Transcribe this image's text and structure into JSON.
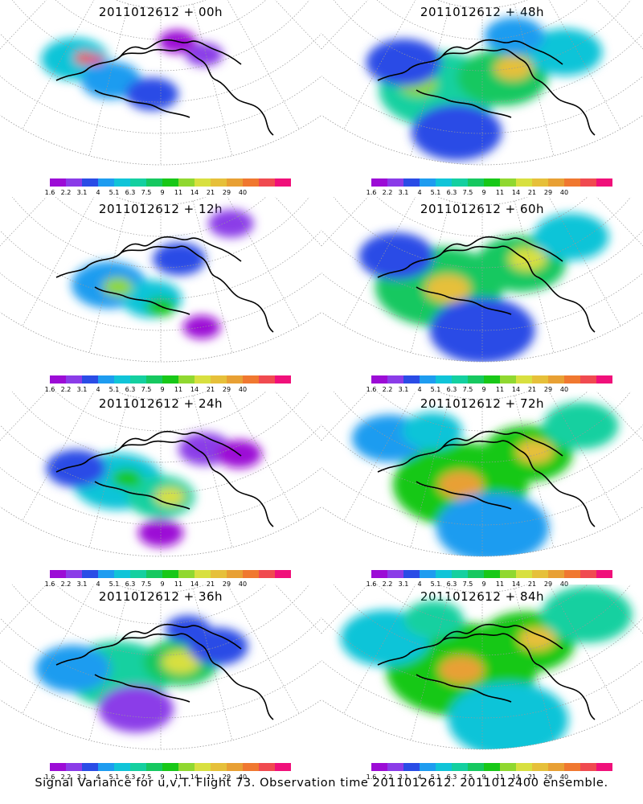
{
  "footer": "Signal Variance for u,v,T. Flight 73. Observation time 2011012612. 2011012400 ensemble.",
  "colors": [
    "#9c0cd6",
    "#8b3ce8",
    "#2a4ce6",
    "#1e9cf0",
    "#10c4d8",
    "#14d0a0",
    "#16c860",
    "#18c818",
    "#90d830",
    "#d8e040",
    "#e6c03a",
    "#e8a034",
    "#f07830",
    "#f04a50",
    "#f0107a"
  ],
  "chart_data": [
    {
      "type": "heatmap",
      "title": "2011012612 + 00h",
      "colorbar_labels": [
        "1.6",
        "2.2",
        "3.1",
        "4",
        "5.1",
        "6.3",
        "7.5",
        "9",
        "11",
        "14",
        "21",
        "29",
        "40"
      ],
      "blobs": [
        {
          "x": 0.28,
          "y": 0.45,
          "level": 4,
          "r": 0.09
        },
        {
          "x": 0.38,
          "y": 0.5,
          "level": 3,
          "r": 0.08
        },
        {
          "x": 0.48,
          "y": 0.55,
          "level": 2,
          "r": 0.07
        },
        {
          "x": 0.62,
          "y": 0.33,
          "level": 1,
          "r": 0.05
        },
        {
          "x": 0.55,
          "y": 0.22,
          "level": 0,
          "r": 0.05
        },
        {
          "x": 0.3,
          "y": 0.42,
          "level": 13,
          "r": 0.025
        },
        {
          "x": 0.33,
          "y": 0.4,
          "level": 14,
          "r": 0.02
        }
      ]
    },
    {
      "type": "heatmap",
      "title": "2011012612 + 12h",
      "colorbar_labels": [
        "1.6",
        "2.2",
        "3.1",
        "4",
        "5.1",
        "6.3",
        "7.5",
        "9",
        "11",
        "14",
        "21",
        "29",
        "40"
      ],
      "blobs": [
        {
          "x": 0.38,
          "y": 0.55,
          "level": 3,
          "r": 0.1
        },
        {
          "x": 0.48,
          "y": 0.6,
          "level": 4,
          "r": 0.08
        },
        {
          "x": 0.4,
          "y": 0.55,
          "level": 8,
          "r": 0.04
        },
        {
          "x": 0.5,
          "y": 0.65,
          "level": 7,
          "r": 0.04
        },
        {
          "x": 0.55,
          "y": 0.35,
          "level": 2,
          "r": 0.07
        },
        {
          "x": 0.72,
          "y": 0.22,
          "level": 1,
          "r": 0.06
        },
        {
          "x": 0.58,
          "y": 0.8,
          "level": 0,
          "r": 0.05
        }
      ]
    },
    {
      "type": "heatmap",
      "title": "2011012612 + 24h",
      "colorbar_labels": [
        "1.6",
        "2.2",
        "3.1",
        "4",
        "5.1",
        "6.3",
        "7.5",
        "9",
        "11",
        "14",
        "21",
        "29",
        "40"
      ],
      "blobs": [
        {
          "x": 0.4,
          "y": 0.55,
          "level": 4,
          "r": 0.12
        },
        {
          "x": 0.5,
          "y": 0.62,
          "level": 5,
          "r": 0.09
        },
        {
          "x": 0.52,
          "y": 0.62,
          "level": 9,
          "r": 0.04
        },
        {
          "x": 0.42,
          "y": 0.52,
          "level": 7,
          "r": 0.04
        },
        {
          "x": 0.3,
          "y": 0.55,
          "level": 2,
          "r": 0.08
        },
        {
          "x": 0.62,
          "y": 0.35,
          "level": 1,
          "r": 0.07
        },
        {
          "x": 0.7,
          "y": 0.45,
          "level": 0,
          "r": 0.06
        },
        {
          "x": 0.5,
          "y": 0.85,
          "level": 0,
          "r": 0.06
        }
      ]
    },
    {
      "type": "heatmap",
      "title": "2011012612 + 36h",
      "colorbar_labels": [
        "1.6",
        "2.2",
        "3.1",
        "4",
        "5.1",
        "6.3",
        "7.5",
        "9",
        "11",
        "14",
        "21",
        "29",
        "40"
      ],
      "blobs": [
        {
          "x": 0.4,
          "y": 0.55,
          "level": 5,
          "r": 0.14
        },
        {
          "x": 0.55,
          "y": 0.45,
          "level": 6,
          "r": 0.1
        },
        {
          "x": 0.55,
          "y": 0.45,
          "level": 9,
          "r": 0.05
        },
        {
          "x": 0.3,
          "y": 0.6,
          "level": 3,
          "r": 0.1
        },
        {
          "x": 0.65,
          "y": 0.4,
          "level": 2,
          "r": 0.08
        },
        {
          "x": 0.45,
          "y": 0.75,
          "level": 1,
          "r": 0.1
        },
        {
          "x": 0.58,
          "y": 0.25,
          "level": 2,
          "r": 0.06
        }
      ]
    },
    {
      "type": "heatmap",
      "title": "2011012612 + 48h",
      "colorbar_labels": [
        "1.6",
        "2.2",
        "3.1",
        "4",
        "5.1",
        "6.3",
        "7.5",
        "9",
        "11",
        "14",
        "21",
        "29",
        "40"
      ],
      "blobs": [
        {
          "x": 0.4,
          "y": 0.55,
          "level": 5,
          "r": 0.16
        },
        {
          "x": 0.55,
          "y": 0.45,
          "level": 6,
          "r": 0.12
        },
        {
          "x": 0.58,
          "y": 0.4,
          "level": 10,
          "r": 0.05
        },
        {
          "x": 0.35,
          "y": 0.55,
          "level": 8,
          "r": 0.05
        },
        {
          "x": 0.72,
          "y": 0.4,
          "level": 4,
          "r": 0.1
        },
        {
          "x": 0.45,
          "y": 0.8,
          "level": 2,
          "r": 0.12
        },
        {
          "x": 0.3,
          "y": 0.45,
          "level": 2,
          "r": 0.1
        },
        {
          "x": 0.6,
          "y": 0.2,
          "level": 3,
          "r": 0.08
        }
      ]
    },
    {
      "type": "heatmap",
      "title": "2011012612 + 60h",
      "colorbar_labels": [
        "1.6",
        "2.2",
        "3.1",
        "4",
        "5.1",
        "6.3",
        "7.5",
        "9",
        "11",
        "14",
        "21",
        "29",
        "40"
      ],
      "blobs": [
        {
          "x": 0.4,
          "y": 0.55,
          "level": 6,
          "r": 0.17
        },
        {
          "x": 0.42,
          "y": 0.55,
          "level": 10,
          "r": 0.06
        },
        {
          "x": 0.6,
          "y": 0.4,
          "level": 6,
          "r": 0.12
        },
        {
          "x": 0.62,
          "y": 0.38,
          "level": 9,
          "r": 0.05
        },
        {
          "x": 0.75,
          "y": 0.35,
          "level": 4,
          "r": 0.1
        },
        {
          "x": 0.5,
          "y": 0.8,
          "level": 2,
          "r": 0.14
        },
        {
          "x": 0.28,
          "y": 0.45,
          "level": 2,
          "r": 0.1
        }
      ]
    },
    {
      "type": "heatmap",
      "title": "2011012612 + 72h",
      "colorbar_labels": [
        "1.6",
        "2.2",
        "3.1",
        "4",
        "5.1",
        "6.3",
        "7.5",
        "9",
        "11",
        "14",
        "21",
        "29",
        "40"
      ],
      "blobs": [
        {
          "x": 0.45,
          "y": 0.55,
          "level": 7,
          "r": 0.18
        },
        {
          "x": 0.45,
          "y": 0.55,
          "level": 11,
          "r": 0.06
        },
        {
          "x": 0.62,
          "y": 0.38,
          "level": 7,
          "r": 0.12
        },
        {
          "x": 0.64,
          "y": 0.38,
          "level": 10,
          "r": 0.05
        },
        {
          "x": 0.78,
          "y": 0.35,
          "level": 5,
          "r": 0.1
        },
        {
          "x": 0.52,
          "y": 0.82,
          "level": 3,
          "r": 0.15
        },
        {
          "x": 0.25,
          "y": 0.4,
          "level": 3,
          "r": 0.1
        },
        {
          "x": 0.35,
          "y": 0.25,
          "level": 4,
          "r": 0.08
        }
      ]
    },
    {
      "type": "heatmap",
      "title": "2011012612 + 84h",
      "colorbar_labels": [
        "1.6",
        "2.2",
        "3.1",
        "4",
        "5.1",
        "6.3",
        "7.5",
        "9",
        "11",
        "14",
        "21",
        "29",
        "40"
      ],
      "blobs": [
        {
          "x": 0.45,
          "y": 0.5,
          "level": 7,
          "r": 0.2
        },
        {
          "x": 0.45,
          "y": 0.5,
          "level": 11,
          "r": 0.06
        },
        {
          "x": 0.62,
          "y": 0.35,
          "level": 7,
          "r": 0.13
        },
        {
          "x": 0.65,
          "y": 0.35,
          "level": 10,
          "r": 0.05
        },
        {
          "x": 0.8,
          "y": 0.35,
          "level": 5,
          "r": 0.12
        },
        {
          "x": 0.55,
          "y": 0.82,
          "level": 4,
          "r": 0.16
        },
        {
          "x": 0.25,
          "y": 0.45,
          "level": 4,
          "r": 0.12
        },
        {
          "x": 0.35,
          "y": 0.22,
          "level": 5,
          "r": 0.08
        }
      ]
    }
  ]
}
